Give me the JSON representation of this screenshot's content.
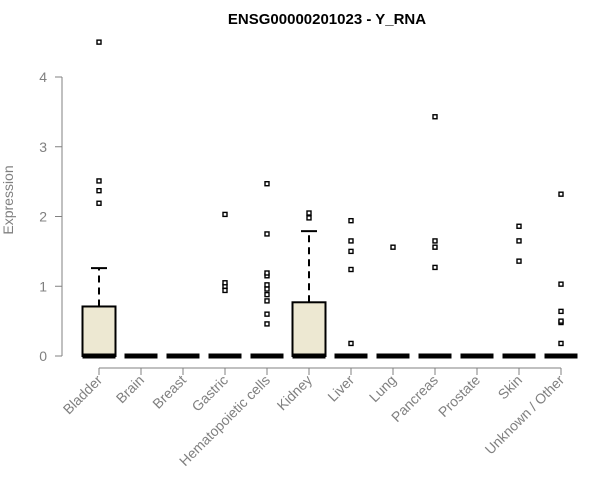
{
  "chart_data": {
    "type": "box",
    "title": "ENSG00000201023 - Y_RNA",
    "xlabel": "",
    "ylabel": "Expression",
    "ylim": [
      0,
      4.5
    ],
    "yticks": [
      0,
      1,
      2,
      3,
      4
    ],
    "grid": false,
    "legend": "none",
    "colors": {
      "box_fill": "#ede8d2",
      "box_stroke": "#000000",
      "axis": "#808080",
      "text": "#808080"
    },
    "categories": [
      "Bladder",
      "Brain",
      "Breast",
      "Gastric",
      "Hematopoietic cells",
      "Kidney",
      "Liver",
      "Lung",
      "Pancreas",
      "Prostate",
      "Skin",
      "Unknown / Other"
    ],
    "boxes": [
      {
        "category": "Bladder",
        "q1": 0,
        "median": 0,
        "q3": 0.71,
        "whisker_low": 0,
        "whisker_high": 1.26,
        "outliers": [
          2.19,
          2.37,
          2.51,
          4.5
        ]
      },
      {
        "category": "Brain",
        "q1": 0,
        "median": 0,
        "q3": 0,
        "whisker_low": 0,
        "whisker_high": 0,
        "outliers": []
      },
      {
        "category": "Breast",
        "q1": 0,
        "median": 0,
        "q3": 0,
        "whisker_low": 0,
        "whisker_high": 0,
        "outliers": []
      },
      {
        "category": "Gastric",
        "q1": 0,
        "median": 0,
        "q3": 0,
        "whisker_low": 0,
        "whisker_high": 0,
        "outliers": [
          0.94,
          1.0,
          1.05,
          2.03
        ]
      },
      {
        "category": "Hematopoietic cells",
        "q1": 0,
        "median": 0,
        "q3": 0,
        "whisker_low": 0,
        "whisker_high": 0,
        "outliers": [
          0.46,
          0.6,
          0.79,
          0.88,
          0.96,
          1.02,
          1.15,
          1.19,
          1.75,
          2.47
        ]
      },
      {
        "category": "Kidney",
        "q1": 0,
        "median": 0,
        "q3": 0.77,
        "whisker_low": 0,
        "whisker_high": 1.79,
        "outliers": [
          1.98,
          2.05
        ]
      },
      {
        "category": "Liver",
        "q1": 0,
        "median": 0,
        "q3": 0,
        "whisker_low": 0,
        "whisker_high": 0,
        "outliers": [
          0.18,
          1.24,
          1.5,
          1.65,
          1.94
        ]
      },
      {
        "category": "Lung",
        "q1": 0,
        "median": 0,
        "q3": 0,
        "whisker_low": 0,
        "whisker_high": 0,
        "outliers": [
          1.56
        ]
      },
      {
        "category": "Pancreas",
        "q1": 0,
        "median": 0,
        "q3": 0,
        "whisker_low": 0,
        "whisker_high": 0,
        "outliers": [
          1.27,
          1.56,
          1.65,
          3.43
        ]
      },
      {
        "category": "Prostate",
        "q1": 0,
        "median": 0,
        "q3": 0,
        "whisker_low": 0,
        "whisker_high": 0,
        "outliers": []
      },
      {
        "category": "Skin",
        "q1": 0,
        "median": 0,
        "q3": 0,
        "whisker_low": 0,
        "whisker_high": 0,
        "outliers": [
          1.36,
          1.65,
          1.86
        ]
      },
      {
        "category": "Unknown / Other",
        "q1": 0,
        "median": 0,
        "q3": 0,
        "whisker_low": 0,
        "whisker_high": 0,
        "outliers": [
          0.18,
          0.48,
          0.5,
          0.64,
          1.03,
          2.32
        ]
      }
    ]
  }
}
